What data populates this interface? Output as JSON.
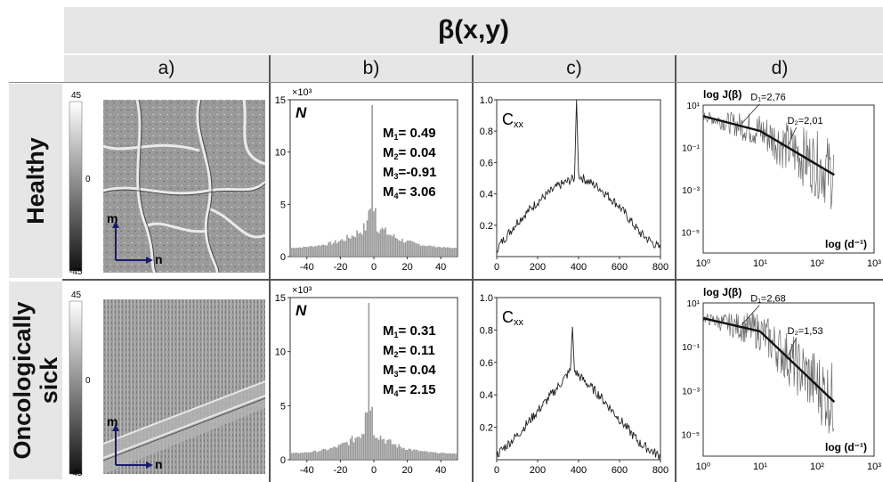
{
  "title": "β(x,y)",
  "columns": [
    "a)",
    "b)",
    "c)",
    "d)"
  ],
  "rows": [
    {
      "label_lines": [
        "Healthy"
      ],
      "map": {
        "scale_top": "45",
        "scale_mid": "0",
        "scale_bot": "-45",
        "axis_m": "m",
        "axis_n": "n"
      },
      "hist": {
        "exp": "×10³",
        "n_label": "N",
        "moments": [
          {
            "name": "M",
            "sub": "1",
            "value": "= 0.49"
          },
          {
            "name": "M",
            "sub": "2",
            "value": "= 0.04"
          },
          {
            "name": "M",
            "sub": "3",
            "value": "=-0.91"
          },
          {
            "name": "M",
            "sub": "4",
            "value": "= 3.06"
          }
        ]
      },
      "corr": {
        "label": "Cxx"
      },
      "power": {
        "ylabel": "log J(β)",
        "xlabel": "log (d⁻¹)",
        "d1": "D₁=2,76",
        "d2": "D₂=2,01"
      }
    },
    {
      "label_lines": [
        "Oncologically",
        "sick"
      ],
      "map": {
        "scale_top": "45",
        "scale_mid": "0",
        "scale_bot": "-45",
        "axis_m": "m",
        "axis_n": "n"
      },
      "hist": {
        "exp": "×10³",
        "n_label": "N",
        "moments": [
          {
            "name": "M",
            "sub": "1",
            "value": "=  0.31"
          },
          {
            "name": "M",
            "sub": "2",
            "value": "=  0.11"
          },
          {
            "name": "M",
            "sub": "3",
            "value": "=  0.04"
          },
          {
            "name": "M",
            "sub": "4",
            "value": "=  2.15"
          }
        ]
      },
      "corr": {
        "label": "Cxx"
      },
      "power": {
        "ylabel": "log J(β)",
        "xlabel": "log (d⁻¹)",
        "d1": "D₁=2,68",
        "d2": "D₂=1,53"
      }
    }
  ],
  "chart_data": [
    {
      "type": "bar",
      "panel": "b-healthy",
      "ylabel": "N ×10³",
      "xlim": [
        -50,
        50
      ],
      "ylim": [
        0,
        15
      ],
      "xticks": [
        -40,
        -20,
        0,
        20,
        40
      ],
      "yticks": [
        0,
        5,
        10,
        15
      ],
      "profile": {
        "center": -1,
        "peak": 14.5,
        "base": 0.7,
        "half_width": 16
      }
    },
    {
      "type": "line",
      "panel": "c-healthy",
      "ylabel": "Cxx",
      "xlim": [
        0,
        800
      ],
      "ylim": [
        0,
        1.0
      ],
      "xticks": [
        0,
        200,
        400,
        600,
        800
      ],
      "yticks": [
        0.2,
        0.4,
        0.6,
        0.8,
        1.0
      ],
      "x": [
        0,
        100,
        200,
        300,
        380,
        390,
        400,
        420,
        500,
        600,
        700,
        800
      ],
      "y": [
        0.05,
        0.22,
        0.35,
        0.45,
        0.5,
        1.0,
        0.52,
        0.5,
        0.44,
        0.32,
        0.15,
        0.05
      ]
    },
    {
      "type": "line",
      "panel": "d-healthy",
      "ylabel": "log J(β)",
      "xlabel": "log (d⁻¹)",
      "log": true,
      "xticks": [
        "10⁰",
        "10¹",
        "10²",
        "10³"
      ],
      "yticks": [
        "10¹",
        "10⁻¹",
        "10⁻³",
        "10⁻⁵"
      ],
      "fit": [
        {
          "label": "D₁=2,76",
          "x": [
            1,
            10
          ],
          "y": [
            3,
            0.6
          ]
        },
        {
          "label": "D₂=2,01",
          "x": [
            10,
            200
          ],
          "y": [
            0.6,
            0.005
          ]
        }
      ]
    },
    {
      "type": "bar",
      "panel": "b-sick",
      "ylabel": "N ×10³",
      "xlim": [
        -50,
        50
      ],
      "ylim": [
        0,
        15
      ],
      "xticks": [
        -40,
        -20,
        0,
        20,
        40
      ],
      "yticks": [
        0,
        5,
        10,
        15
      ],
      "profile": {
        "center": -3,
        "peak": 14.5,
        "base": 0.5,
        "half_width": 14
      }
    },
    {
      "type": "line",
      "panel": "c-sick",
      "ylabel": "Cxx",
      "xlim": [
        0,
        800
      ],
      "ylim": [
        0,
        1.0
      ],
      "xticks": [
        0,
        200,
        400,
        600,
        800
      ],
      "yticks": [
        0.2,
        0.4,
        0.6,
        0.8,
        1.0
      ],
      "x": [
        0,
        100,
        200,
        300,
        360,
        370,
        380,
        400,
        500,
        600,
        700,
        800
      ],
      "y": [
        0.03,
        0.15,
        0.3,
        0.45,
        0.55,
        0.82,
        0.55,
        0.52,
        0.4,
        0.25,
        0.1,
        0.02
      ]
    },
    {
      "type": "line",
      "panel": "d-sick",
      "ylabel": "log J(β)",
      "xlabel": "log (d⁻¹)",
      "log": true,
      "xticks": [
        "10⁰",
        "10¹",
        "10²",
        "10³"
      ],
      "yticks": [
        "10¹",
        "10⁻¹",
        "10⁻³",
        "10⁻⁵"
      ],
      "fit": [
        {
          "label": "D₁=2,68",
          "x": [
            1,
            10
          ],
          "y": [
            2,
            0.5
          ]
        },
        {
          "label": "D₂=1,53",
          "x": [
            10,
            200
          ],
          "y": [
            0.5,
            0.0003
          ]
        }
      ]
    }
  ]
}
